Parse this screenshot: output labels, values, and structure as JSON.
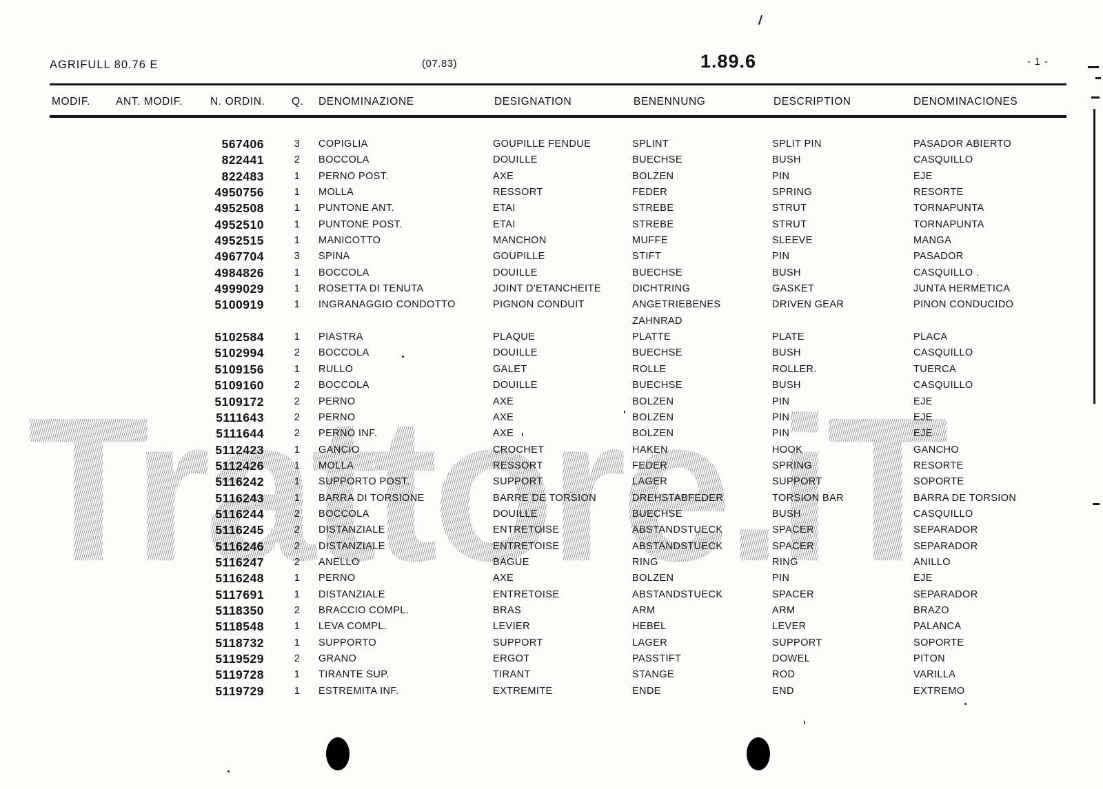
{
  "page": {
    "model": "AGRIFULL 80.76 E",
    "edition": "(07.83)",
    "section": "1.89.6",
    "page_number": "- 1 -"
  },
  "watermark": {
    "text": "Trattore.iT"
  },
  "table": {
    "headers": {
      "modif": "MODIF.",
      "ant_modif": "ANT. MODIF.",
      "n_ordin": "N. ORDIN.",
      "q": "Q.",
      "denominazione": "DENOMINAZIONE",
      "designation": "DESIGNATION",
      "benennung": "BENENNUNG",
      "description": "DESCRIPTION",
      "denominaciones": "DENOMINACIONES"
    },
    "rows": [
      {
        "num": "567406",
        "qty": "3",
        "it": "COPIGLIA",
        "fr": "GOUPILLE FENDUE",
        "de": "SPLINT",
        "en": "SPLIT PIN",
        "es": "PASADOR ABIERTO"
      },
      {
        "num": "822441",
        "qty": "2",
        "it": "BOCCOLA",
        "fr": "DOUILLE",
        "de": "BUECHSE",
        "en": "BUSH",
        "es": "CASQUILLO"
      },
      {
        "num": "822483",
        "qty": "1",
        "it": "PERNO POST.",
        "fr": "AXE",
        "de": "BOLZEN",
        "en": "PIN",
        "es": "EJE"
      },
      {
        "num": "4950756",
        "qty": "1",
        "it": "MOLLA",
        "fr": "RESSORT",
        "de": "FEDER",
        "en": "SPRING",
        "es": "RESORTE"
      },
      {
        "num": "4952508",
        "qty": "1",
        "it": "PUNTONE ANT.",
        "fr": "ETAI",
        "de": "STREBE",
        "en": "STRUT",
        "es": "TORNAPUNTA"
      },
      {
        "num": "4952510",
        "qty": "1",
        "it": "PUNTONE POST.",
        "fr": "ETAI",
        "de": "STREBE",
        "en": "STRUT",
        "es": "TORNAPUNTA"
      },
      {
        "num": "4952515",
        "qty": "1",
        "it": "MANICOTTO",
        "fr": "MANCHON",
        "de": "MUFFE",
        "en": "SLEEVE",
        "es": "MANGA"
      },
      {
        "num": "4967704",
        "qty": "3",
        "it": "SPINA",
        "fr": "GOUPILLE",
        "de": "STIFT",
        "en": "PIN",
        "es": "PASADOR"
      },
      {
        "num": "4984826",
        "qty": "1",
        "it": "BOCCOLA",
        "fr": "DOUILLE",
        "de": "BUECHSE",
        "en": "BUSH",
        "es": "CASQUILLO ."
      },
      {
        "num": "4999029",
        "qty": "1",
        "it": "ROSETTA DI TENUTA",
        "fr": "JOINT D'ETANCHEITE",
        "de": "DICHTRING",
        "en": "GASKET",
        "es": "JUNTA HERMETICA"
      },
      {
        "num": "5100919",
        "qty": "1",
        "it": "INGRANAGGIO CONDOTTO",
        "fr": "PIGNON CONDUIT",
        "de": "ANGETRIEBENES",
        "en": "DRIVEN GEAR",
        "es": "PINON CONDUCIDO"
      },
      {
        "num": "",
        "qty": "",
        "it": "",
        "fr": "",
        "de": "ZAHNRAD",
        "en": "",
        "es": ""
      },
      {
        "num": "5102584",
        "qty": "1",
        "it": "PIASTRA",
        "fr": "PLAQUE",
        "de": "PLATTE",
        "en": "PLATE",
        "es": "PLACA"
      },
      {
        "num": "5102994",
        "qty": "2",
        "it": "BOCCOLA",
        "fr": "DOUILLE",
        "de": "BUECHSE",
        "en": "BUSH",
        "es": "CASQUILLO"
      },
      {
        "num": "5109156",
        "qty": "1",
        "it": "RULLO",
        "fr": "GALET",
        "de": "ROLLE",
        "en": "ROLLER.",
        "es": "TUERCA"
      },
      {
        "num": "5109160",
        "qty": "2",
        "it": "BOCCOLA",
        "fr": "DOUILLE",
        "de": "BUECHSE",
        "en": "BUSH",
        "es": "CASQUILLO"
      },
      {
        "num": "5109172",
        "qty": "2",
        "it": "PERNO",
        "fr": "AXE",
        "de": "BOLZEN",
        "en": "PIN",
        "es": "EJE"
      },
      {
        "num": "5111643",
        "qty": "2",
        "it": "PERNO",
        "fr": "AXE",
        "de": "BOLZEN",
        "en": "PIN",
        "es": "EJE"
      },
      {
        "num": "5111644",
        "qty": "2",
        "it": "PERNO INF.",
        "fr": "AXE",
        "de": "BOLZEN",
        "en": "PIN",
        "es": "EJE"
      },
      {
        "num": "5112423",
        "qty": "1",
        "it": "GANCIO",
        "fr": "CROCHET",
        "de": "HAKEN",
        "en": "HOOK",
        "es": "GANCHO"
      },
      {
        "num": "5112426",
        "qty": "1",
        "it": "MOLLA",
        "fr": "RESSORT",
        "de": "FEDER",
        "en": "SPRING",
        "es": "RESORTE"
      },
      {
        "num": "5116242",
        "qty": "1",
        "it": "SUPPORTO POST.",
        "fr": "SUPPORT",
        "de": "LAGER",
        "en": "SUPPORT",
        "es": "SOPORTE"
      },
      {
        "num": "5116243",
        "qty": "1",
        "it": "BARRA DI TORSIONE",
        "fr": "BARRE DE TORSION",
        "de": "DREHSTABFEDER",
        "en": "TORSION BAR",
        "es": "BARRA DE TORSION"
      },
      {
        "num": "5116244",
        "qty": "2",
        "it": "BOCCOLA",
        "fr": "DOUILLE",
        "de": "BUECHSE",
        "en": "BUSH",
        "es": "CASQUILLO"
      },
      {
        "num": "5116245",
        "qty": "2",
        "it": "DISTANZIALE",
        "fr": "ENTRETOISE",
        "de": "ABSTANDSTUECK",
        "en": "SPACER",
        "es": "SEPARADOR"
      },
      {
        "num": "5116246",
        "qty": "2",
        "it": "DISTANZIALE",
        "fr": "ENTRETOISE",
        "de": "ABSTANDSTUECK",
        "en": "SPACER",
        "es": "SEPARADOR"
      },
      {
        "num": "5116247",
        "qty": "2",
        "it": "ANELLO",
        "fr": "BAGUE",
        "de": "RING",
        "en": "RING",
        "es": "ANILLO"
      },
      {
        "num": "5116248",
        "qty": "1",
        "it": "PERNO",
        "fr": "AXE",
        "de": "BOLZEN",
        "en": "PIN",
        "es": "EJE"
      },
      {
        "num": "5117691",
        "qty": "1",
        "it": "DISTANZIALE",
        "fr": "ENTRETOISE",
        "de": "ABSTANDSTUECK",
        "en": "SPACER",
        "es": "SEPARADOR"
      },
      {
        "num": "5118350",
        "qty": "2",
        "it": "BRACCIO COMPL.",
        "fr": "BRAS",
        "de": "ARM",
        "en": "ARM",
        "es": "BRAZO"
      },
      {
        "num": "5118548",
        "qty": "1",
        "it": "LEVA COMPL.",
        "fr": "LEVIER",
        "de": "HEBEL",
        "en": "LEVER",
        "es": "PALANCA"
      },
      {
        "num": "5118732",
        "qty": "1",
        "it": "SUPPORTO",
        "fr": "SUPPORT",
        "de": "LAGER",
        "en": "SUPPORT",
        "es": "SOPORTE"
      },
      {
        "num": "5119529",
        "qty": "2",
        "it": "GRANO",
        "fr": "ERGOT",
        "de": "PASSTIFT",
        "en": "DOWEL",
        "es": "PITON"
      },
      {
        "num": "5119728",
        "qty": "1",
        "it": "TIRANTE SUP.",
        "fr": "TIRANT",
        "de": "STANGE",
        "en": "ROD",
        "es": "VARILLA"
      },
      {
        "num": "5119729",
        "qty": "1",
        "it": "ESTREMITA INF.",
        "fr": "EXTREMITE",
        "de": "ENDE",
        "en": "END",
        "es": "EXTREMO"
      }
    ]
  }
}
